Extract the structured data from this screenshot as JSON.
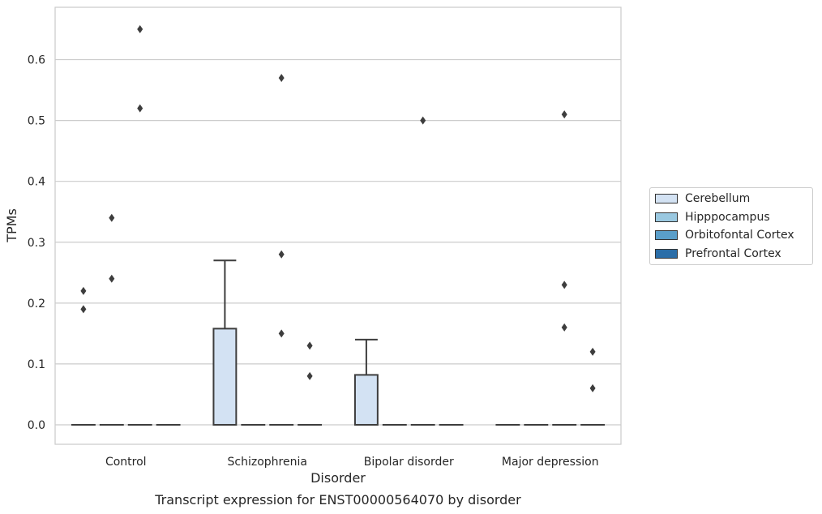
{
  "chart_data": {
    "type": "boxplot",
    "title": "Transcript expression for ENST00000564070 by disorder",
    "xlabel": "Disorder",
    "ylabel": "TPMs",
    "ylim": [
      -0.032,
      0.686
    ],
    "yticks": [
      "0.0",
      "0.1",
      "0.2",
      "0.3",
      "0.4",
      "0.5",
      "0.6"
    ],
    "ytick_values": [
      0,
      0.1,
      0.2,
      0.3,
      0.4,
      0.5,
      0.6
    ],
    "grid": true,
    "legend_position": "outside-right",
    "categories": [
      "Control",
      "Schizophrenia",
      "Bipolar disorder",
      "Major depression"
    ],
    "series": [
      {
        "name": "Cerebellum",
        "color": "#d3e2f3",
        "boxes": [
          {
            "q1": 0,
            "median": 0,
            "q3": 0,
            "whisker_low": 0,
            "whisker_high": 0,
            "outliers": [
              0.19,
              0.22
            ]
          },
          {
            "q1": 0,
            "median": 0,
            "q3": 0.158,
            "whisker_low": 0,
            "whisker_high": 0.27,
            "outliers": []
          },
          {
            "q1": 0,
            "median": 0,
            "q3": 0.082,
            "whisker_low": 0,
            "whisker_high": 0.14,
            "outliers": []
          },
          {
            "q1": 0,
            "median": 0,
            "q3": 0,
            "whisker_low": 0,
            "whisker_high": 0,
            "outliers": []
          }
        ]
      },
      {
        "name": "Hipppocampus",
        "color": "#9ac8e0",
        "boxes": [
          {
            "q1": 0,
            "median": 0,
            "q3": 0,
            "whisker_low": 0,
            "whisker_high": 0,
            "outliers": [
              0.24,
              0.34
            ]
          },
          {
            "q1": 0,
            "median": 0,
            "q3": 0,
            "whisker_low": 0,
            "whisker_high": 0,
            "outliers": []
          },
          {
            "q1": 0,
            "median": 0,
            "q3": 0,
            "whisker_low": 0,
            "whisker_high": 0,
            "outliers": []
          },
          {
            "q1": 0,
            "median": 0,
            "q3": 0,
            "whisker_low": 0,
            "whisker_high": 0,
            "outliers": []
          }
        ]
      },
      {
        "name": "Orbitofontal Cortex",
        "color": "#5a9ec9",
        "boxes": [
          {
            "q1": 0,
            "median": 0,
            "q3": 0,
            "whisker_low": 0,
            "whisker_high": 0,
            "outliers": [
              0.52,
              0.65
            ]
          },
          {
            "q1": 0,
            "median": 0,
            "q3": 0,
            "whisker_low": 0,
            "whisker_high": 0,
            "outliers": [
              0.15,
              0.28,
              0.57
            ]
          },
          {
            "q1": 0,
            "median": 0,
            "q3": 0,
            "whisker_low": 0,
            "whisker_high": 0,
            "outliers": [
              0.5
            ]
          },
          {
            "q1": 0,
            "median": 0,
            "q3": 0,
            "whisker_low": 0,
            "whisker_high": 0,
            "outliers": [
              0.16,
              0.23,
              0.51
            ]
          }
        ]
      },
      {
        "name": "Prefrontal Cortex",
        "color": "#2b6ea8",
        "boxes": [
          {
            "q1": 0,
            "median": 0,
            "q3": 0,
            "whisker_low": 0,
            "whisker_high": 0,
            "outliers": []
          },
          {
            "q1": 0,
            "median": 0,
            "q3": 0,
            "whisker_low": 0,
            "whisker_high": 0,
            "outliers": [
              0.08,
              0.13
            ]
          },
          {
            "q1": 0,
            "median": 0,
            "q3": 0,
            "whisker_low": 0,
            "whisker_high": 0,
            "outliers": []
          },
          {
            "q1": 0,
            "median": 0,
            "q3": 0,
            "whisker_low": 0,
            "whisker_high": 0,
            "outliers": [
              0.06,
              0.12
            ]
          }
        ]
      }
    ]
  }
}
